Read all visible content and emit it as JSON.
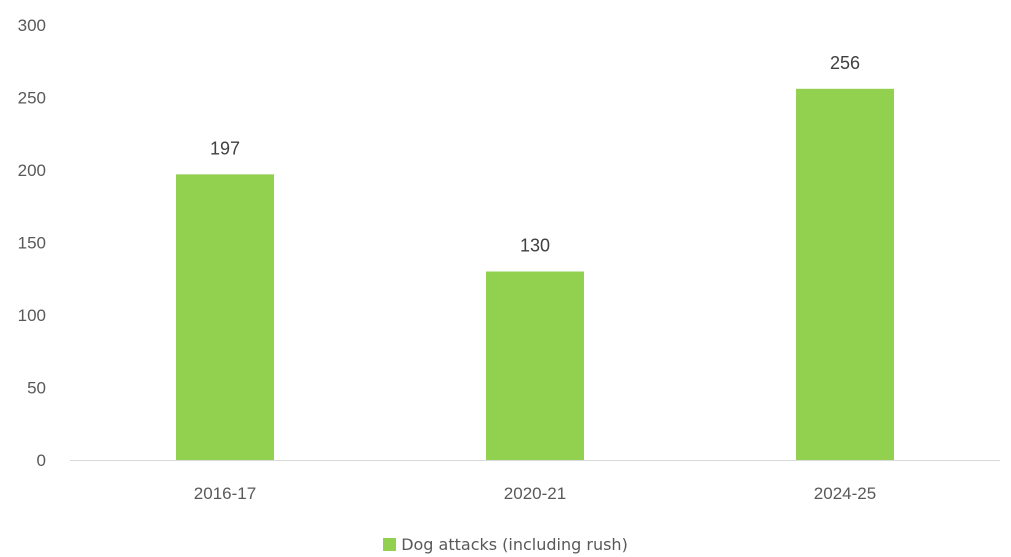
{
  "chart_data": {
    "type": "bar",
    "categories": [
      "2016-17",
      "2020-21",
      "2024-25"
    ],
    "series": [
      {
        "name": "Dog attacks (including rush)",
        "values": [
          197,
          130,
          256
        ],
        "color": "#92d050"
      }
    ],
    "data_labels": [
      "197",
      "130",
      "256"
    ],
    "ylim": [
      0,
      300
    ],
    "yticks": [
      0,
      50,
      100,
      150,
      200,
      250,
      300
    ],
    "title": "",
    "xlabel": "",
    "ylabel": "",
    "grid": false,
    "legend_position": "bottom",
    "axis_color": "#d9d9d9"
  }
}
